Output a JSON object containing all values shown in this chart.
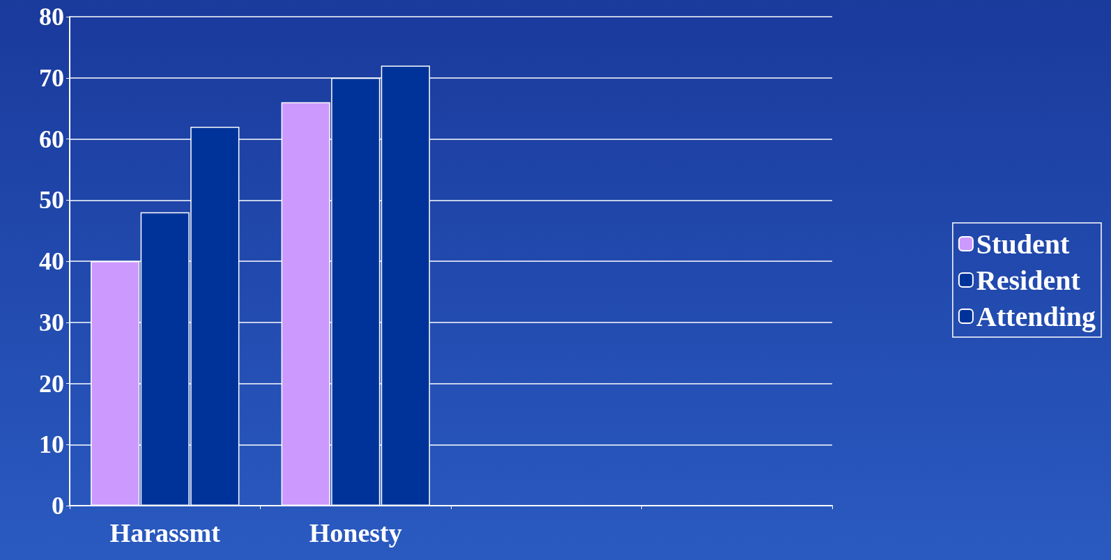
{
  "chart_data": {
    "type": "bar",
    "categories": [
      "Harassmt",
      "Honesty",
      null,
      null
    ],
    "series": [
      {
        "name": "Student",
        "color": "#cc99ff",
        "values": [
          40,
          66,
          null,
          null
        ]
      },
      {
        "name": "Resident",
        "color": "#003399",
        "values": [
          48,
          70,
          null,
          null
        ]
      },
      {
        "name": "Attending",
        "color": "#003399",
        "values": [
          62,
          72,
          null,
          null
        ]
      }
    ],
    "ylim": [
      0,
      80
    ],
    "yticks": [
      0,
      10,
      20,
      30,
      40,
      50,
      60,
      70,
      80
    ],
    "grid": "y",
    "legend": "right"
  }
}
